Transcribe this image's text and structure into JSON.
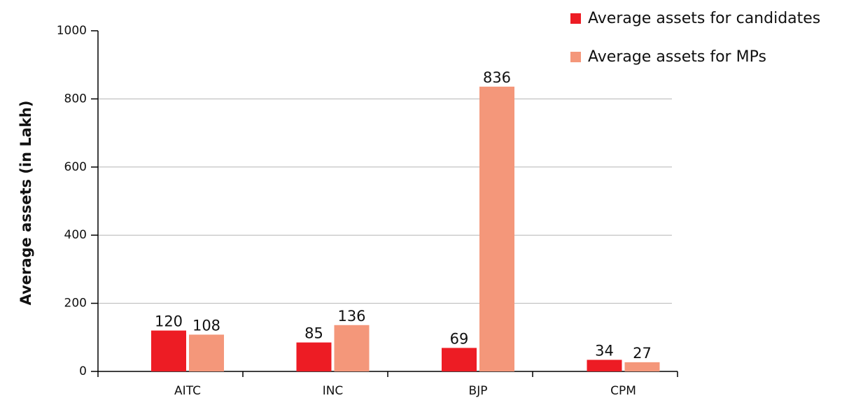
{
  "chart_data": {
    "type": "bar",
    "y_label": "Average assets (in Lakh)",
    "categories": [
      "AITC",
      "INC",
      "BJP",
      "CPM"
    ],
    "series": [
      {
        "name": "Average assets for candidates",
        "color": "#ed1c24",
        "values": [
          120,
          85,
          69,
          34
        ]
      },
      {
        "name": "Average assets for MPs",
        "color": "#f4977a",
        "values": [
          108,
          136,
          836,
          27
        ]
      }
    ],
    "ylim": [
      0,
      1000
    ],
    "yticks": [
      0,
      200,
      400,
      600,
      800,
      1000
    ],
    "grid": true,
    "legend": "top-right"
  }
}
